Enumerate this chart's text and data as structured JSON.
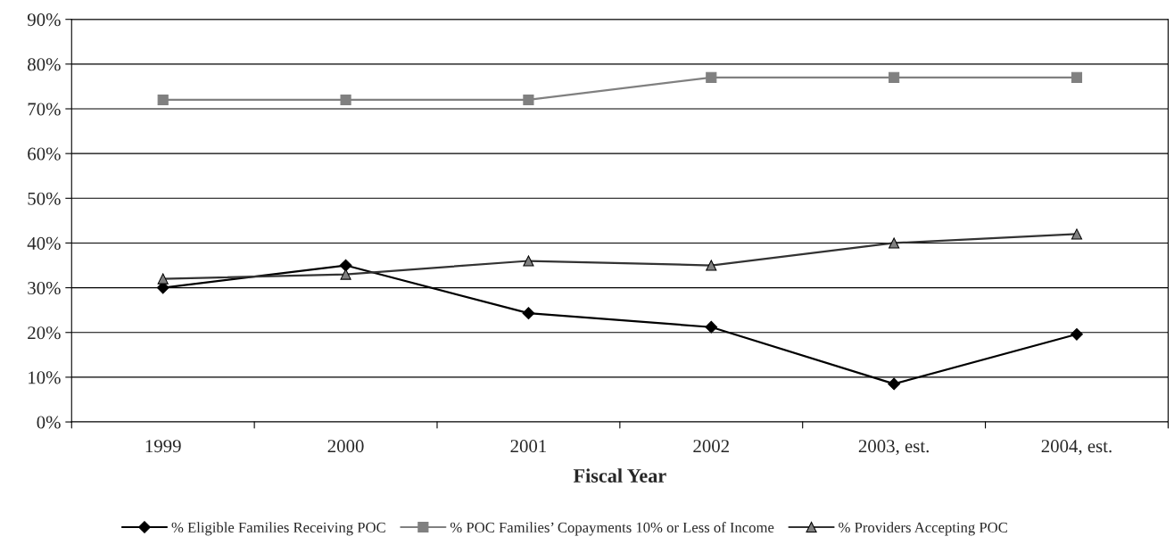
{
  "chart_data": {
    "type": "line",
    "xlabel": "Fiscal Year",
    "categories": [
      "1999",
      "2000",
      "2001",
      "2002",
      "2003, est.",
      "2004, est."
    ],
    "series": [
      {
        "name": "% Eligible Families Receiving POC",
        "color": "#000000",
        "marker": "diamond",
        "values": [
          30,
          35,
          24.3,
          21.2,
          8.5,
          19.6
        ]
      },
      {
        "name": "% POC Families’ Copayments 10% or Less of Income",
        "color": "#808080",
        "marker": "square",
        "values": [
          72,
          72,
          72,
          77,
          77,
          77
        ]
      },
      {
        "name": "% Providers Accepting POC",
        "color": "#333333",
        "marker": "triangle",
        "values": [
          32,
          33,
          36,
          35,
          40,
          42
        ]
      }
    ],
    "ylim": [
      0,
      90
    ],
    "yticks": [
      {
        "value": 0,
        "label": "0%"
      },
      {
        "value": 10,
        "label": "10%"
      },
      {
        "value": 20,
        "label": "20%"
      },
      {
        "value": 30,
        "label": "30%"
      },
      {
        "value": 40,
        "label": "40%"
      },
      {
        "value": 50,
        "label": "50%"
      },
      {
        "value": 60,
        "label": "60%"
      },
      {
        "value": 70,
        "label": "70%"
      },
      {
        "value": 80,
        "label": "80%"
      },
      {
        "value": 90,
        "label": "90%"
      }
    ],
    "grid": "y",
    "legend": "bottom",
    "line_style": "solid"
  }
}
